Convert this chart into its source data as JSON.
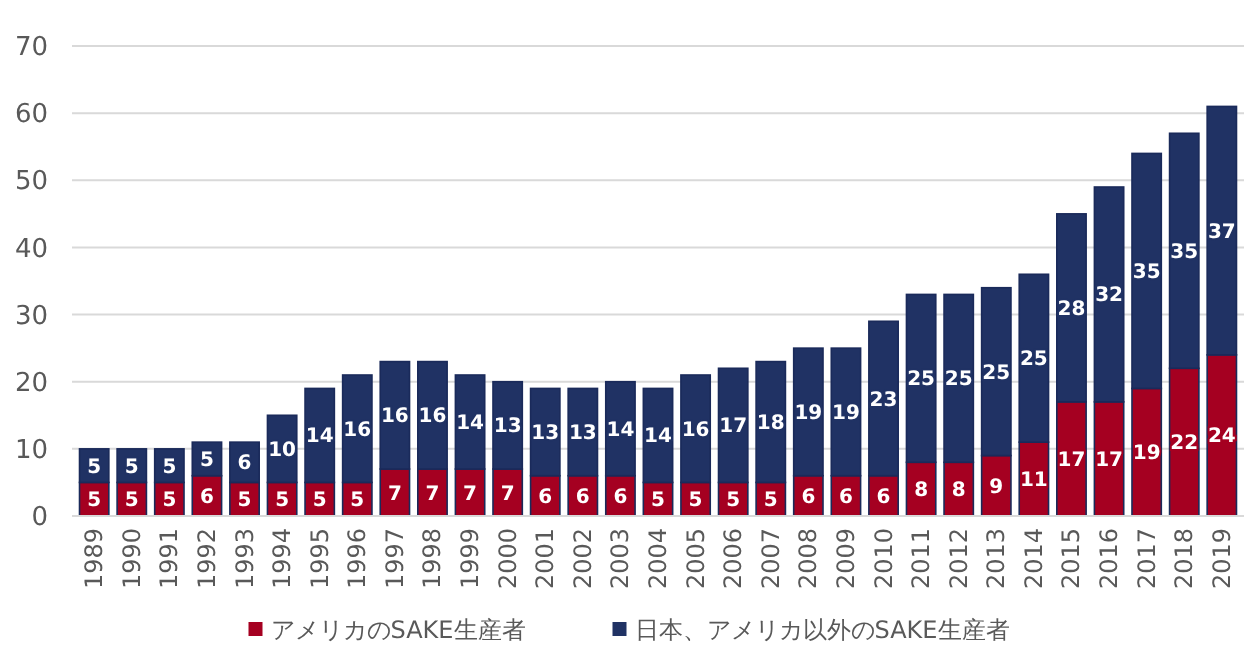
{
  "chart_data": {
    "type": "bar",
    "stacked": true,
    "categories": [
      "1989",
      "1990",
      "1991",
      "1992",
      "1993",
      "1994",
      "1995",
      "1996",
      "1997",
      "1998",
      "1999",
      "2000",
      "2001",
      "2002",
      "2003",
      "2004",
      "2005",
      "2006",
      "2007",
      "2008",
      "2009",
      "2010",
      "2011",
      "2012",
      "2013",
      "2014",
      "2015",
      "2016",
      "2017",
      "2018",
      "2019"
    ],
    "series": [
      {
        "name": "アメリカのSAKE生産者",
        "color": "#a50021",
        "values": [
          5,
          5,
          5,
          6,
          5,
          5,
          5,
          5,
          7,
          7,
          7,
          7,
          6,
          6,
          6,
          5,
          5,
          5,
          5,
          6,
          6,
          6,
          8,
          8,
          9,
          11,
          17,
          17,
          19,
          22,
          24
        ]
      },
      {
        "name": "日本、アメリカ以外のSAKE生産者",
        "color": "#203264",
        "values": [
          5,
          5,
          5,
          5,
          6,
          10,
          14,
          16,
          16,
          16,
          14,
          13,
          13,
          13,
          14,
          14,
          16,
          17,
          18,
          19,
          19,
          23,
          25,
          25,
          25,
          25,
          28,
          32,
          35,
          35,
          37
        ]
      }
    ],
    "ylim": [
      0,
      70
    ],
    "yticks": [
      0,
      10,
      20,
      30,
      40,
      50,
      60,
      70
    ],
    "grid": "y",
    "legend": "bottom",
    "data_labels": true
  }
}
